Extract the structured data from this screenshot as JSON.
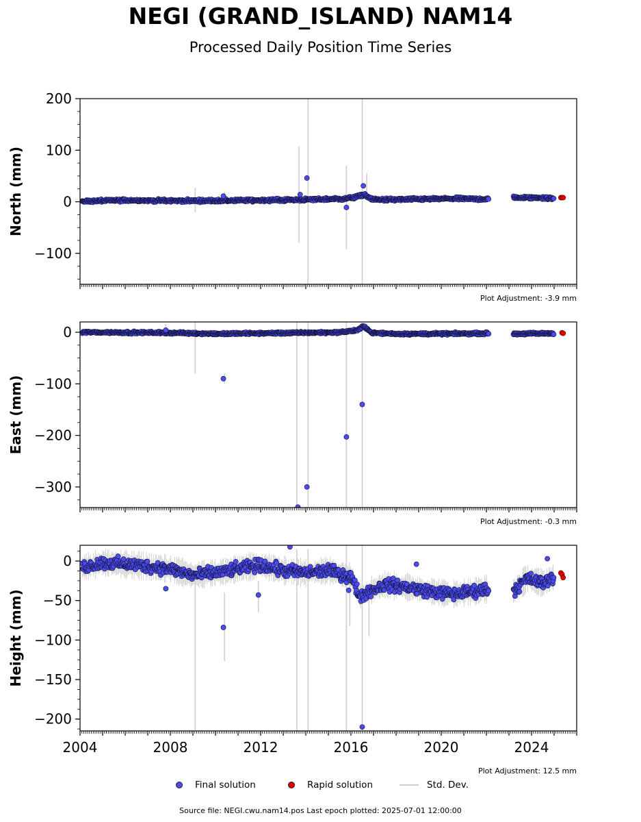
{
  "header": {
    "title": "NEGI (GRAND_ISLAND) NAM14",
    "subtitle": "Processed Daily Position Time Series"
  },
  "colors": {
    "final": "#4b4bf0",
    "rapid": "#e00000",
    "stddev": "#d0d0d0",
    "edge": "#111133"
  },
  "chart_data": [
    {
      "type": "scatter",
      "ylabel": "North (mm)",
      "ylim": [
        -160,
        200
      ],
      "yticks": [
        200,
        100,
        0,
        -100
      ],
      "ytick_labels": [
        "200",
        "100",
        "0",
        "−100"
      ],
      "xlim": [
        2004.0,
        2026.0
      ],
      "adjustment": "Plot Adjustment: -3.9 mm",
      "baseline": [
        [
          2004.1,
          1
        ],
        [
          2006,
          3
        ],
        [
          2008,
          2
        ],
        [
          2010,
          2
        ],
        [
          2012,
          3
        ],
        [
          2014,
          4
        ],
        [
          2015.8,
          6
        ],
        [
          2016.3,
          10
        ],
        [
          2016.6,
          14
        ],
        [
          2016.9,
          5
        ],
        [
          2017.5,
          4
        ],
        [
          2019,
          5
        ],
        [
          2020.5,
          6
        ],
        [
          2022.1,
          5
        ],
        [
          2023.2,
          8
        ],
        [
          2024.5,
          8
        ],
        [
          2025.0,
          6
        ]
      ],
      "noise": 2.5,
      "outliers": [
        [
          2014.05,
          46
        ],
        [
          2016.55,
          31
        ],
        [
          2015.8,
          -11
        ],
        [
          2013.75,
          14
        ],
        [
          2010.35,
          11
        ]
      ],
      "error_bars": [
        [
          2009.1,
          -20,
          27
        ],
        [
          2013.7,
          -80,
          108
        ],
        [
          2014.1,
          -160,
          200
        ],
        [
          2015.8,
          -92,
          70
        ],
        [
          2016.5,
          -160,
          200
        ],
        [
          2016.7,
          12,
          55
        ],
        [
          2010.4,
          -2,
          20
        ]
      ],
      "rapid": [
        [
          2025.3,
          8
        ],
        [
          2025.35,
          8
        ],
        [
          2025.4,
          8
        ]
      ]
    },
    {
      "type": "scatter",
      "ylabel": "East (mm)",
      "ylim": [
        -340,
        20
      ],
      "yticks": [
        0,
        -100,
        -200,
        -300
      ],
      "ytick_labels": [
        "0",
        "−100",
        "−200",
        "−300"
      ],
      "xlim": [
        2004.0,
        2026.0
      ],
      "adjustment": "Plot Adjustment: -0.3 mm",
      "baseline": [
        [
          2004.1,
          0
        ],
        [
          2008,
          -1
        ],
        [
          2010,
          -3
        ],
        [
          2012,
          -2
        ],
        [
          2014,
          -1
        ],
        [
          2015.5,
          0
        ],
        [
          2016.3,
          4
        ],
        [
          2016.6,
          12
        ],
        [
          2016.9,
          -1
        ],
        [
          2018,
          -3
        ],
        [
          2020,
          -3
        ],
        [
          2022.1,
          -2
        ],
        [
          2023.2,
          -3
        ],
        [
          2025.0,
          -2
        ]
      ],
      "noise": 2.0,
      "outliers": [
        [
          2010.35,
          -90
        ],
        [
          2015.8,
          -203
        ],
        [
          2016.5,
          -140
        ],
        [
          2014.05,
          -300
        ],
        [
          2013.65,
          -339
        ],
        [
          2007.8,
          4
        ]
      ],
      "error_bars": [
        [
          2009.1,
          -80,
          20
        ],
        [
          2013.6,
          -340,
          20
        ],
        [
          2014.1,
          -340,
          20
        ],
        [
          2015.8,
          -340,
          20
        ],
        [
          2016.5,
          -340,
          20
        ],
        [
          2010.4,
          -100,
          -80
        ],
        [
          2007.8,
          -6,
          16
        ]
      ],
      "rapid": [
        [
          2025.35,
          -1
        ],
        [
          2025.4,
          -2
        ]
      ]
    },
    {
      "type": "scatter",
      "ylabel": "Height (mm)",
      "ylim": [
        -215,
        20
      ],
      "yticks": [
        0,
        -50,
        -100,
        -150,
        -200
      ],
      "ytick_labels": [
        "0",
        "−50",
        "−100",
        "−150",
        "−200"
      ],
      "xticks": [
        2004,
        2008,
        2012,
        2016,
        2020,
        2024
      ],
      "xtick_labels": [
        "2004",
        "2008",
        "2012",
        "2016",
        "2020",
        "2024"
      ],
      "xlim": [
        2004.0,
        2026.0
      ],
      "adjustment": "Plot Adjustment: 12.5 mm",
      "baseline": [
        [
          2004.1,
          -8
        ],
        [
          2005,
          -2
        ],
        [
          2006.5,
          -5
        ],
        [
          2008,
          -10
        ],
        [
          2009,
          -18
        ],
        [
          2010,
          -15
        ],
        [
          2011,
          -10
        ],
        [
          2012,
          -5
        ],
        [
          2013,
          -12
        ],
        [
          2014,
          -15
        ],
        [
          2015,
          -12
        ],
        [
          2016,
          -20
        ],
        [
          2016.4,
          -45
        ],
        [
          2016.8,
          -38
        ],
        [
          2017.5,
          -30
        ],
        [
          2018.5,
          -33
        ],
        [
          2019.5,
          -38
        ],
        [
          2020.5,
          -42
        ],
        [
          2021.5,
          -38
        ],
        [
          2022.1,
          -35
        ],
        [
          2023.2,
          -38
        ],
        [
          2023.8,
          -22
        ],
        [
          2024.5,
          -28
        ],
        [
          2025.0,
          -20
        ]
      ],
      "noise": 7.0,
      "outliers": [
        [
          2010.35,
          -84
        ],
        [
          2016.5,
          -210
        ],
        [
          2011.9,
          -43
        ],
        [
          2018.9,
          -4
        ],
        [
          2007.8,
          -35
        ],
        [
          2015.9,
          -37
        ],
        [
          2013.3,
          18
        ],
        [
          2024.7,
          3
        ]
      ],
      "error_bars": [
        [
          2009.1,
          -215,
          -12
        ],
        [
          2013.6,
          -215,
          15
        ],
        [
          2014.1,
          -215,
          15
        ],
        [
          2015.8,
          -215,
          20
        ],
        [
          2016.5,
          -215,
          20
        ],
        [
          2010.4,
          -127,
          -40
        ],
        [
          2011.9,
          -65,
          -25
        ],
        [
          2016.8,
          -95,
          -35
        ],
        [
          2015.95,
          -82,
          -20
        ]
      ],
      "rapid": [
        [
          2025.3,
          -15
        ],
        [
          2025.35,
          -17
        ],
        [
          2025.4,
          -21
        ]
      ]
    }
  ],
  "legend": {
    "final_label": "Final solution",
    "rapid_label": "Rapid solution",
    "stddev_label": "Std. Dev."
  },
  "footer": {
    "source": "Source file: NEGI.cwu.nam14.pos  Last epoch plotted: 2025-07-01 12:00:00"
  }
}
